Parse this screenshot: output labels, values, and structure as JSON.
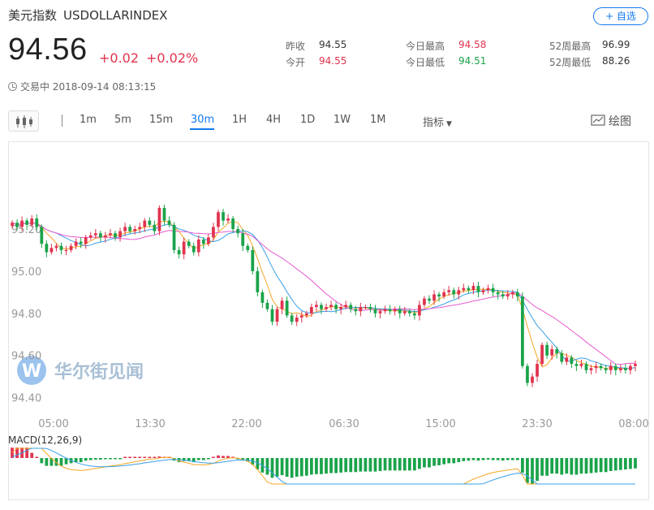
{
  "header": {
    "name": "美元指数",
    "symbol": "USDOLLARINDEX",
    "add_button": "+ 自选",
    "price": "94.56",
    "change": "+0.02",
    "change_pct": "+0.02%",
    "status": "交易中 2018-09-14 08:13:15"
  },
  "stats": {
    "prev_close_label": "昨收",
    "prev_close": "94.55",
    "open_label": "今开",
    "open": "94.55",
    "high_label": "今日最高",
    "high": "94.58",
    "low_label": "今日最低",
    "low": "94.51",
    "w52_high_label": "52周最高",
    "w52_high": "96.99",
    "w52_low_label": "52周最低",
    "w52_low": "88.26"
  },
  "toolbar": {
    "timeframes": [
      "1m",
      "5m",
      "15m",
      "30m",
      "1H",
      "4H",
      "1D",
      "1W",
      "1M"
    ],
    "active": "30m",
    "indicator_label": "指标",
    "draw_label": "绘图"
  },
  "watermark": "华尔街见闻",
  "colors": {
    "up": "#e0334e",
    "down": "#1aa34a",
    "ma_a": "#f5a623",
    "ma_b": "#3aa0e8",
    "ma_c": "#e85ad0",
    "accent": "#1478f0"
  },
  "chart_data": {
    "type": "candlestick",
    "x_tick_labels": [
      "05:00",
      "13:30",
      "22:00",
      "06:30",
      "15:00",
      "23:30",
      "08:00"
    ],
    "ylim": [
      94.36,
      95.57
    ],
    "y_ticks": [
      95.2,
      95.0,
      94.8,
      94.6,
      94.4
    ],
    "y_tick_labels": [
      "95.20",
      "95.00",
      "94.80",
      "94.60",
      "94.40"
    ],
    "close": [
      95.23,
      95.21,
      95.24,
      95.22,
      95.25,
      95.21,
      95.13,
      95.09,
      95.11,
      95.12,
      95.1,
      95.1,
      95.12,
      95.14,
      95.13,
      95.16,
      95.17,
      95.18,
      95.16,
      95.17,
      95.18,
      95.16,
      95.19,
      95.21,
      95.19,
      95.2,
      95.21,
      95.24,
      95.22,
      95.19,
      95.3,
      95.24,
      95.22,
      95.1,
      95.08,
      95.14,
      95.12,
      95.09,
      95.15,
      95.13,
      95.16,
      95.21,
      95.28,
      95.24,
      95.25,
      95.2,
      95.18,
      95.12,
      95.1,
      95.0,
      94.9,
      94.85,
      94.82,
      94.76,
      94.82,
      94.86,
      94.79,
      94.76,
      94.78,
      94.79,
      94.8,
      94.83,
      94.84,
      94.82,
      94.83,
      94.84,
      94.82,
      94.83,
      94.84,
      94.82,
      94.81,
      94.83,
      94.83,
      94.82,
      94.8,
      94.81,
      94.82,
      94.81,
      94.82,
      94.8,
      94.81,
      94.8,
      94.79,
      94.84,
      94.87,
      94.86,
      94.89,
      94.88,
      94.9,
      94.91,
      94.89,
      94.91,
      94.92,
      94.91,
      94.93,
      94.9,
      94.91,
      94.92,
      94.9,
      94.89,
      94.88,
      94.89,
      94.9,
      94.88,
      94.55,
      94.47,
      94.5,
      94.56,
      94.65,
      94.6,
      94.63,
      94.61,
      94.57,
      94.59,
      94.56,
      94.55,
      94.56,
      94.53,
      94.54,
      94.55,
      94.54,
      94.53,
      94.55,
      94.53,
      94.54,
      94.53,
      94.55,
      94.56
    ],
    "macd": {
      "label": "MACD(12,26,9)",
      "hist": [
        0.02,
        0.02,
        0.02,
        0.02,
        0.01,
        0.0,
        -0.01,
        -0.015,
        -0.015,
        -0.015,
        -0.015,
        -0.012,
        -0.01,
        -0.008,
        -0.008,
        -0.005,
        -0.004,
        -0.003,
        -0.003,
        -0.002,
        -0.002,
        -0.002,
        -0.001,
        0.0,
        0.0,
        0.001,
        0.001,
        0.002,
        0.002,
        0.0,
        0.003,
        0.002,
        0.001,
        -0.005,
        -0.008,
        -0.006,
        -0.006,
        -0.008,
        -0.004,
        -0.004,
        -0.002,
        0.001,
        0.005,
        0.004,
        0.004,
        0.001,
        -0.001,
        -0.005,
        -0.007,
        -0.013,
        -0.022,
        -0.028,
        -0.032,
        -0.038,
        -0.036,
        -0.033,
        -0.036,
        -0.038,
        -0.036,
        -0.035,
        -0.034,
        -0.032,
        -0.031,
        -0.031,
        -0.03,
        -0.029,
        -0.029,
        -0.028,
        -0.027,
        -0.027,
        -0.027,
        -0.026,
        -0.026,
        -0.026,
        -0.026,
        -0.025,
        -0.024,
        -0.024,
        -0.024,
        -0.024,
        -0.024,
        -0.024,
        -0.024,
        -0.021,
        -0.018,
        -0.018,
        -0.015,
        -0.014,
        -0.012,
        -0.01,
        -0.01,
        -0.008,
        -0.006,
        -0.005,
        -0.004,
        -0.005,
        -0.004,
        -0.003,
        -0.004,
        -0.004,
        -0.005,
        -0.004,
        -0.004,
        -0.004,
        -0.028,
        -0.048,
        -0.05,
        -0.044,
        -0.034,
        -0.034,
        -0.03,
        -0.03,
        -0.032,
        -0.03,
        -0.032,
        -0.032,
        -0.03,
        -0.03,
        -0.029,
        -0.028,
        -0.027,
        -0.027,
        -0.025,
        -0.024,
        -0.023,
        -0.022,
        -0.021,
        -0.02
      ]
    }
  }
}
